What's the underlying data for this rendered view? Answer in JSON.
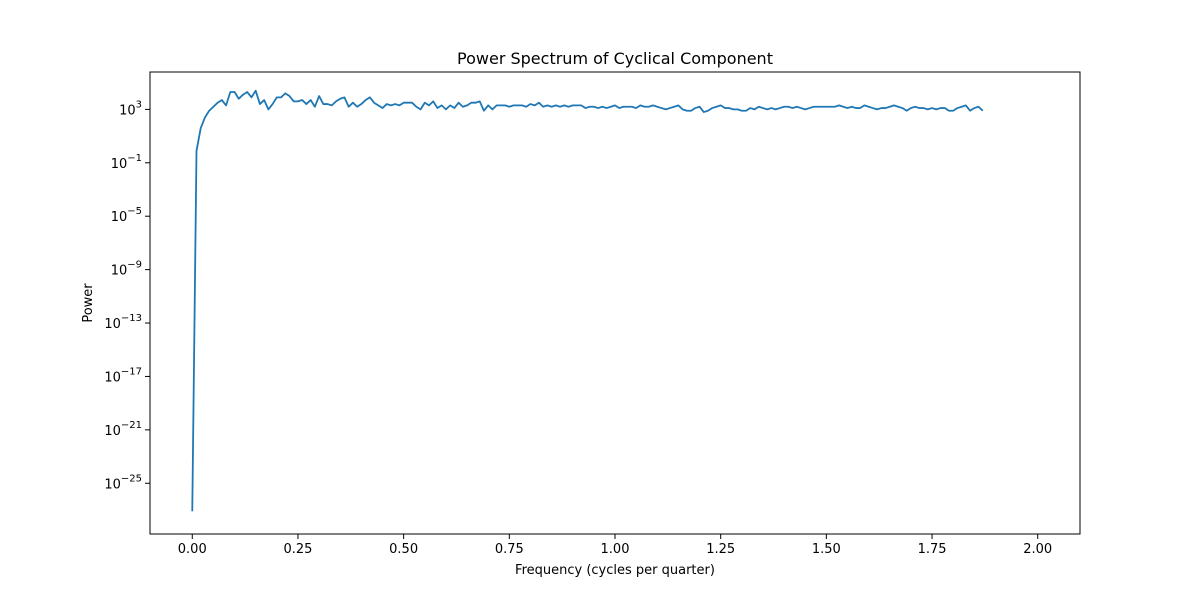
{
  "chart_data": {
    "type": "line",
    "title": "Power Spectrum of Cyclical Component",
    "xlabel": "Frequency (cycles per quarter)",
    "ylabel": "Power",
    "y_scale": "log",
    "xlim": [
      -0.1,
      2.1
    ],
    "ylim_log10": [
      -28.8,
      5.8
    ],
    "x_ticks": [
      {
        "value": 0.0,
        "label": "0.00"
      },
      {
        "value": 0.25,
        "label": "0.25"
      },
      {
        "value": 0.5,
        "label": "0.50"
      },
      {
        "value": 0.75,
        "label": "0.75"
      },
      {
        "value": 1.0,
        "label": "1.00"
      },
      {
        "value": 1.25,
        "label": "1.25"
      },
      {
        "value": 1.5,
        "label": "1.50"
      },
      {
        "value": 1.75,
        "label": "1.75"
      },
      {
        "value": 2.0,
        "label": "2.00"
      }
    ],
    "y_ticks": [
      {
        "log10": 3,
        "base": "10",
        "exp": "3"
      },
      {
        "log10": -1,
        "base": "10",
        "exp": "−1"
      },
      {
        "log10": -5,
        "base": "10",
        "exp": "−5"
      },
      {
        "log10": -9,
        "base": "10",
        "exp": "−9"
      },
      {
        "log10": -13,
        "base": "10",
        "exp": "−13"
      },
      {
        "log10": -17,
        "base": "10",
        "exp": "−17"
      },
      {
        "log10": -21,
        "base": "10",
        "exp": "−21"
      },
      {
        "log10": -25,
        "base": "10",
        "exp": "−25"
      }
    ],
    "series_color": "#1f77b4",
    "grid": false,
    "series": [
      {
        "x": [
          0.0,
          0.01,
          0.02,
          0.03,
          0.04,
          0.05,
          0.06,
          0.07,
          0.08,
          0.09,
          0.1,
          0.11,
          0.12,
          0.13,
          0.14,
          0.15,
          0.16,
          0.17,
          0.18,
          0.19,
          0.2,
          0.21,
          0.22,
          0.23,
          0.24,
          0.25,
          0.26,
          0.27,
          0.28,
          0.29,
          0.3,
          0.31,
          0.32,
          0.33,
          0.34,
          0.35,
          0.36,
          0.37,
          0.38,
          0.39,
          0.4,
          0.41,
          0.42,
          0.43,
          0.44,
          0.45,
          0.46,
          0.47,
          0.48,
          0.49,
          0.5,
          0.51,
          0.52,
          0.53,
          0.54,
          0.55,
          0.56,
          0.57,
          0.58,
          0.59,
          0.6,
          0.61,
          0.62,
          0.63,
          0.64,
          0.65,
          0.66,
          0.67,
          0.68,
          0.69,
          0.7,
          0.71,
          0.72,
          0.73,
          0.74,
          0.75,
          0.76,
          0.77,
          0.78,
          0.79,
          0.8,
          0.81,
          0.82,
          0.83,
          0.84,
          0.85,
          0.86,
          0.87,
          0.88,
          0.89,
          0.9,
          0.91,
          0.92,
          0.93,
          0.94,
          0.95,
          0.96,
          0.97,
          0.98,
          0.99,
          1.0,
          1.01,
          1.02,
          1.03,
          1.04,
          1.05,
          1.06,
          1.07,
          1.08,
          1.09,
          1.1,
          1.11,
          1.12,
          1.13,
          1.14,
          1.15,
          1.16,
          1.17,
          1.18,
          1.19,
          1.2,
          1.21,
          1.22,
          1.23,
          1.24,
          1.25,
          1.26,
          1.27,
          1.28,
          1.29,
          1.3,
          1.31,
          1.32,
          1.33,
          1.34,
          1.35,
          1.36,
          1.37,
          1.38,
          1.39,
          1.4,
          1.41,
          1.42,
          1.43,
          1.44,
          1.45,
          1.46,
          1.47,
          1.48,
          1.49,
          1.5,
          1.51,
          1.52,
          1.53,
          1.54,
          1.55,
          1.56,
          1.57,
          1.58,
          1.59,
          1.6,
          1.61,
          1.62,
          1.63,
          1.64,
          1.65,
          1.66,
          1.67,
          1.68,
          1.69,
          1.7,
          1.71,
          1.72,
          1.73,
          1.74,
          1.75,
          1.76,
          1.77,
          1.78,
          1.79,
          1.8,
          1.81,
          1.82,
          1.83,
          1.84,
          1.85,
          1.86,
          1.87,
          1.88,
          1.89,
          1.9,
          1.91,
          1.92,
          1.93,
          1.94,
          1.95,
          1.96,
          1.97,
          1.98,
          1.99
        ],
        "log10_power": [
          -27.1,
          -0.1,
          1.6,
          2.4,
          2.9,
          3.2,
          3.5,
          3.7,
          3.3,
          4.3,
          4.3,
          3.8,
          4.1,
          4.3,
          3.9,
          4.4,
          3.4,
          3.7,
          3.0,
          3.4,
          3.9,
          3.9,
          4.2,
          4.0,
          3.6,
          3.6,
          3.7,
          3.4,
          3.7,
          3.2,
          4.0,
          3.4,
          3.4,
          3.3,
          3.6,
          3.8,
          3.9,
          3.2,
          3.5,
          3.2,
          3.4,
          3.7,
          3.9,
          3.5,
          3.3,
          3.1,
          3.4,
          3.3,
          3.4,
          3.3,
          3.5,
          3.5,
          3.5,
          3.2,
          3.0,
          3.5,
          3.3,
          3.6,
          3.1,
          3.3,
          3.0,
          3.3,
          3.1,
          3.5,
          3.2,
          3.3,
          3.5,
          3.5,
          3.6,
          2.9,
          3.3,
          3.0,
          3.3,
          3.3,
          3.3,
          3.2,
          3.3,
          3.3,
          3.3,
          3.2,
          3.4,
          3.3,
          3.5,
          3.2,
          3.3,
          3.2,
          3.3,
          3.2,
          3.3,
          3.2,
          3.3,
          3.3,
          3.3,
          3.1,
          3.2,
          3.2,
          3.1,
          3.2,
          3.1,
          3.2,
          3.3,
          3.1,
          3.2,
          3.2,
          3.2,
          3.1,
          3.3,
          3.2,
          3.2,
          3.3,
          3.2,
          3.1,
          3.0,
          3.1,
          3.2,
          3.3,
          3.0,
          2.9,
          2.9,
          3.1,
          3.2,
          2.8,
          2.9,
          3.1,
          3.2,
          3.3,
          3.1,
          3.1,
          3.0,
          3.0,
          2.9,
          2.9,
          3.1,
          3.0,
          3.2,
          3.1,
          3.0,
          3.1,
          3.0,
          3.1,
          3.2,
          3.2,
          3.1,
          3.2,
          3.1,
          3.0,
          3.1,
          3.2,
          3.2,
          3.2,
          3.2,
          3.2,
          3.2,
          3.3,
          3.2,
          3.1,
          3.2,
          3.1,
          3.1,
          3.3,
          3.2,
          3.1,
          3.0,
          3.1,
          3.1,
          3.2,
          3.3,
          3.2,
          3.1,
          2.9,
          3.1,
          3.2,
          3.1,
          3.1,
          3.0,
          3.1,
          3.0,
          3.1,
          3.1,
          2.9,
          2.9,
          3.1,
          3.2,
          3.3,
          2.9,
          3.1,
          3.2,
          2.9
        ]
      }
    ]
  }
}
